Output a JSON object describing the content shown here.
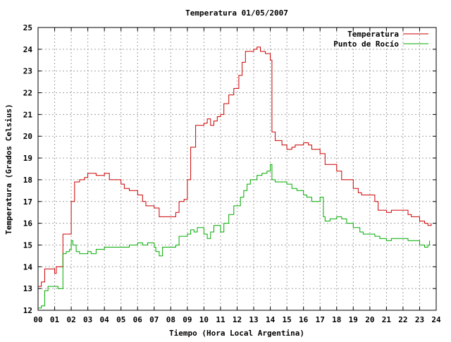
{
  "chart_data": {
    "type": "line",
    "title": "Temperatura 01/05/2007",
    "xlabel": "Tiempo (Hora Local Argentina)",
    "ylabel": "Temperatura (Grados Celsius)",
    "xlim": [
      0,
      24
    ],
    "ylim": [
      12,
      25
    ],
    "grid": true,
    "legend_position": "top-right",
    "x_ticks": [
      "00",
      "01",
      "02",
      "03",
      "04",
      "05",
      "06",
      "07",
      "08",
      "09",
      "10",
      "11",
      "12",
      "13",
      "14",
      "15",
      "16",
      "17",
      "18",
      "19",
      "20",
      "21",
      "22",
      "23",
      "24"
    ],
    "y_ticks": [
      "12",
      "13",
      "14",
      "15",
      "16",
      "17",
      "18",
      "19",
      "20",
      "21",
      "22",
      "23",
      "24",
      "25"
    ],
    "series": [
      {
        "name": "Temperatura",
        "color": "#cc0000",
        "x": [
          0.0,
          0.2,
          0.4,
          0.5,
          0.8,
          1.0,
          1.1,
          1.5,
          1.8,
          2.0,
          2.2,
          2.5,
          2.8,
          3.0,
          3.5,
          4.0,
          4.3,
          4.5,
          5.0,
          5.2,
          5.5,
          6.0,
          6.3,
          6.5,
          7.0,
          7.3,
          7.5,
          8.0,
          8.3,
          8.5,
          8.8,
          9.0,
          9.2,
          9.5,
          10.0,
          10.2,
          10.4,
          10.6,
          10.8,
          11.0,
          11.2,
          11.5,
          11.8,
          12.0,
          12.1,
          12.3,
          12.5,
          13.0,
          13.2,
          13.4,
          13.7,
          14.0,
          14.1,
          14.3,
          14.7,
          15.0,
          15.3,
          15.5,
          16.0,
          16.3,
          16.5,
          17.0,
          17.3,
          17.5,
          18.0,
          18.3,
          18.5,
          19.0,
          19.3,
          19.5,
          20.0,
          20.3,
          20.5,
          21.0,
          21.3,
          21.5,
          22.0,
          22.3,
          22.5,
          23.0,
          23.3,
          23.5,
          23.7
        ],
        "values": [
          13.1,
          13.3,
          13.9,
          13.9,
          13.9,
          13.7,
          14.0,
          15.5,
          15.5,
          17.0,
          17.9,
          18.0,
          18.1,
          18.3,
          18.2,
          18.3,
          18.0,
          18.0,
          17.8,
          17.6,
          17.5,
          17.3,
          17.0,
          16.8,
          16.7,
          16.3,
          16.3,
          16.3,
          16.5,
          17.0,
          17.1,
          18.0,
          19.5,
          20.5,
          20.6,
          20.8,
          20.5,
          20.7,
          20.9,
          21.0,
          21.5,
          21.9,
          22.2,
          22.2,
          22.8,
          23.4,
          23.9,
          24.0,
          24.1,
          23.9,
          23.8,
          23.5,
          20.2,
          19.8,
          19.6,
          19.4,
          19.5,
          19.6,
          19.7,
          19.6,
          19.4,
          19.2,
          18.7,
          18.7,
          18.4,
          18.0,
          18.0,
          17.6,
          17.4,
          17.3,
          17.3,
          17.0,
          16.6,
          16.5,
          16.6,
          16.6,
          16.6,
          16.4,
          16.3,
          16.1,
          16.0,
          15.9,
          16.0
        ]
      },
      {
        "name": "Punto de Rocío",
        "color": "#00aa00",
        "x": [
          0.0,
          0.2,
          0.4,
          0.6,
          1.0,
          1.2,
          1.5,
          1.7,
          1.9,
          2.0,
          2.1,
          2.3,
          2.5,
          3.0,
          3.2,
          3.5,
          4.0,
          4.5,
          5.0,
          5.5,
          6.0,
          6.3,
          6.6,
          7.0,
          7.1,
          7.3,
          7.5,
          8.0,
          8.3,
          8.5,
          9.0,
          9.2,
          9.4,
          9.6,
          10.0,
          10.2,
          10.4,
          10.6,
          11.0,
          11.2,
          11.5,
          11.8,
          12.0,
          12.2,
          12.4,
          12.6,
          12.8,
          13.0,
          13.2,
          13.5,
          13.8,
          14.0,
          14.1,
          14.3,
          14.7,
          15.0,
          15.3,
          15.6,
          16.0,
          16.2,
          16.5,
          17.0,
          17.2,
          17.3,
          17.6,
          18.0,
          18.3,
          18.6,
          19.0,
          19.4,
          19.6,
          20.0,
          20.3,
          20.6,
          21.0,
          21.3,
          21.6,
          22.0,
          22.3,
          22.6,
          23.0,
          23.3,
          23.5,
          23.6
        ],
        "values": [
          12.1,
          12.2,
          12.9,
          13.1,
          13.1,
          13.0,
          14.6,
          14.7,
          14.8,
          15.2,
          15.0,
          14.7,
          14.6,
          14.7,
          14.6,
          14.8,
          14.9,
          14.9,
          14.9,
          15.0,
          15.1,
          15.0,
          15.1,
          14.9,
          14.7,
          14.5,
          14.9,
          14.9,
          15.0,
          15.4,
          15.5,
          15.7,
          15.6,
          15.8,
          15.5,
          15.3,
          15.6,
          15.9,
          15.6,
          16.0,
          16.4,
          16.8,
          16.8,
          17.2,
          17.5,
          17.8,
          18.0,
          18.0,
          18.2,
          18.3,
          18.4,
          18.7,
          18.0,
          17.9,
          17.9,
          17.8,
          17.6,
          17.5,
          17.3,
          17.2,
          17.0,
          17.2,
          16.3,
          16.1,
          16.2,
          16.3,
          16.2,
          16.0,
          15.8,
          15.6,
          15.5,
          15.5,
          15.4,
          15.3,
          15.2,
          15.3,
          15.3,
          15.3,
          15.2,
          15.2,
          15.0,
          14.9,
          15.0,
          15.2
        ]
      }
    ]
  }
}
